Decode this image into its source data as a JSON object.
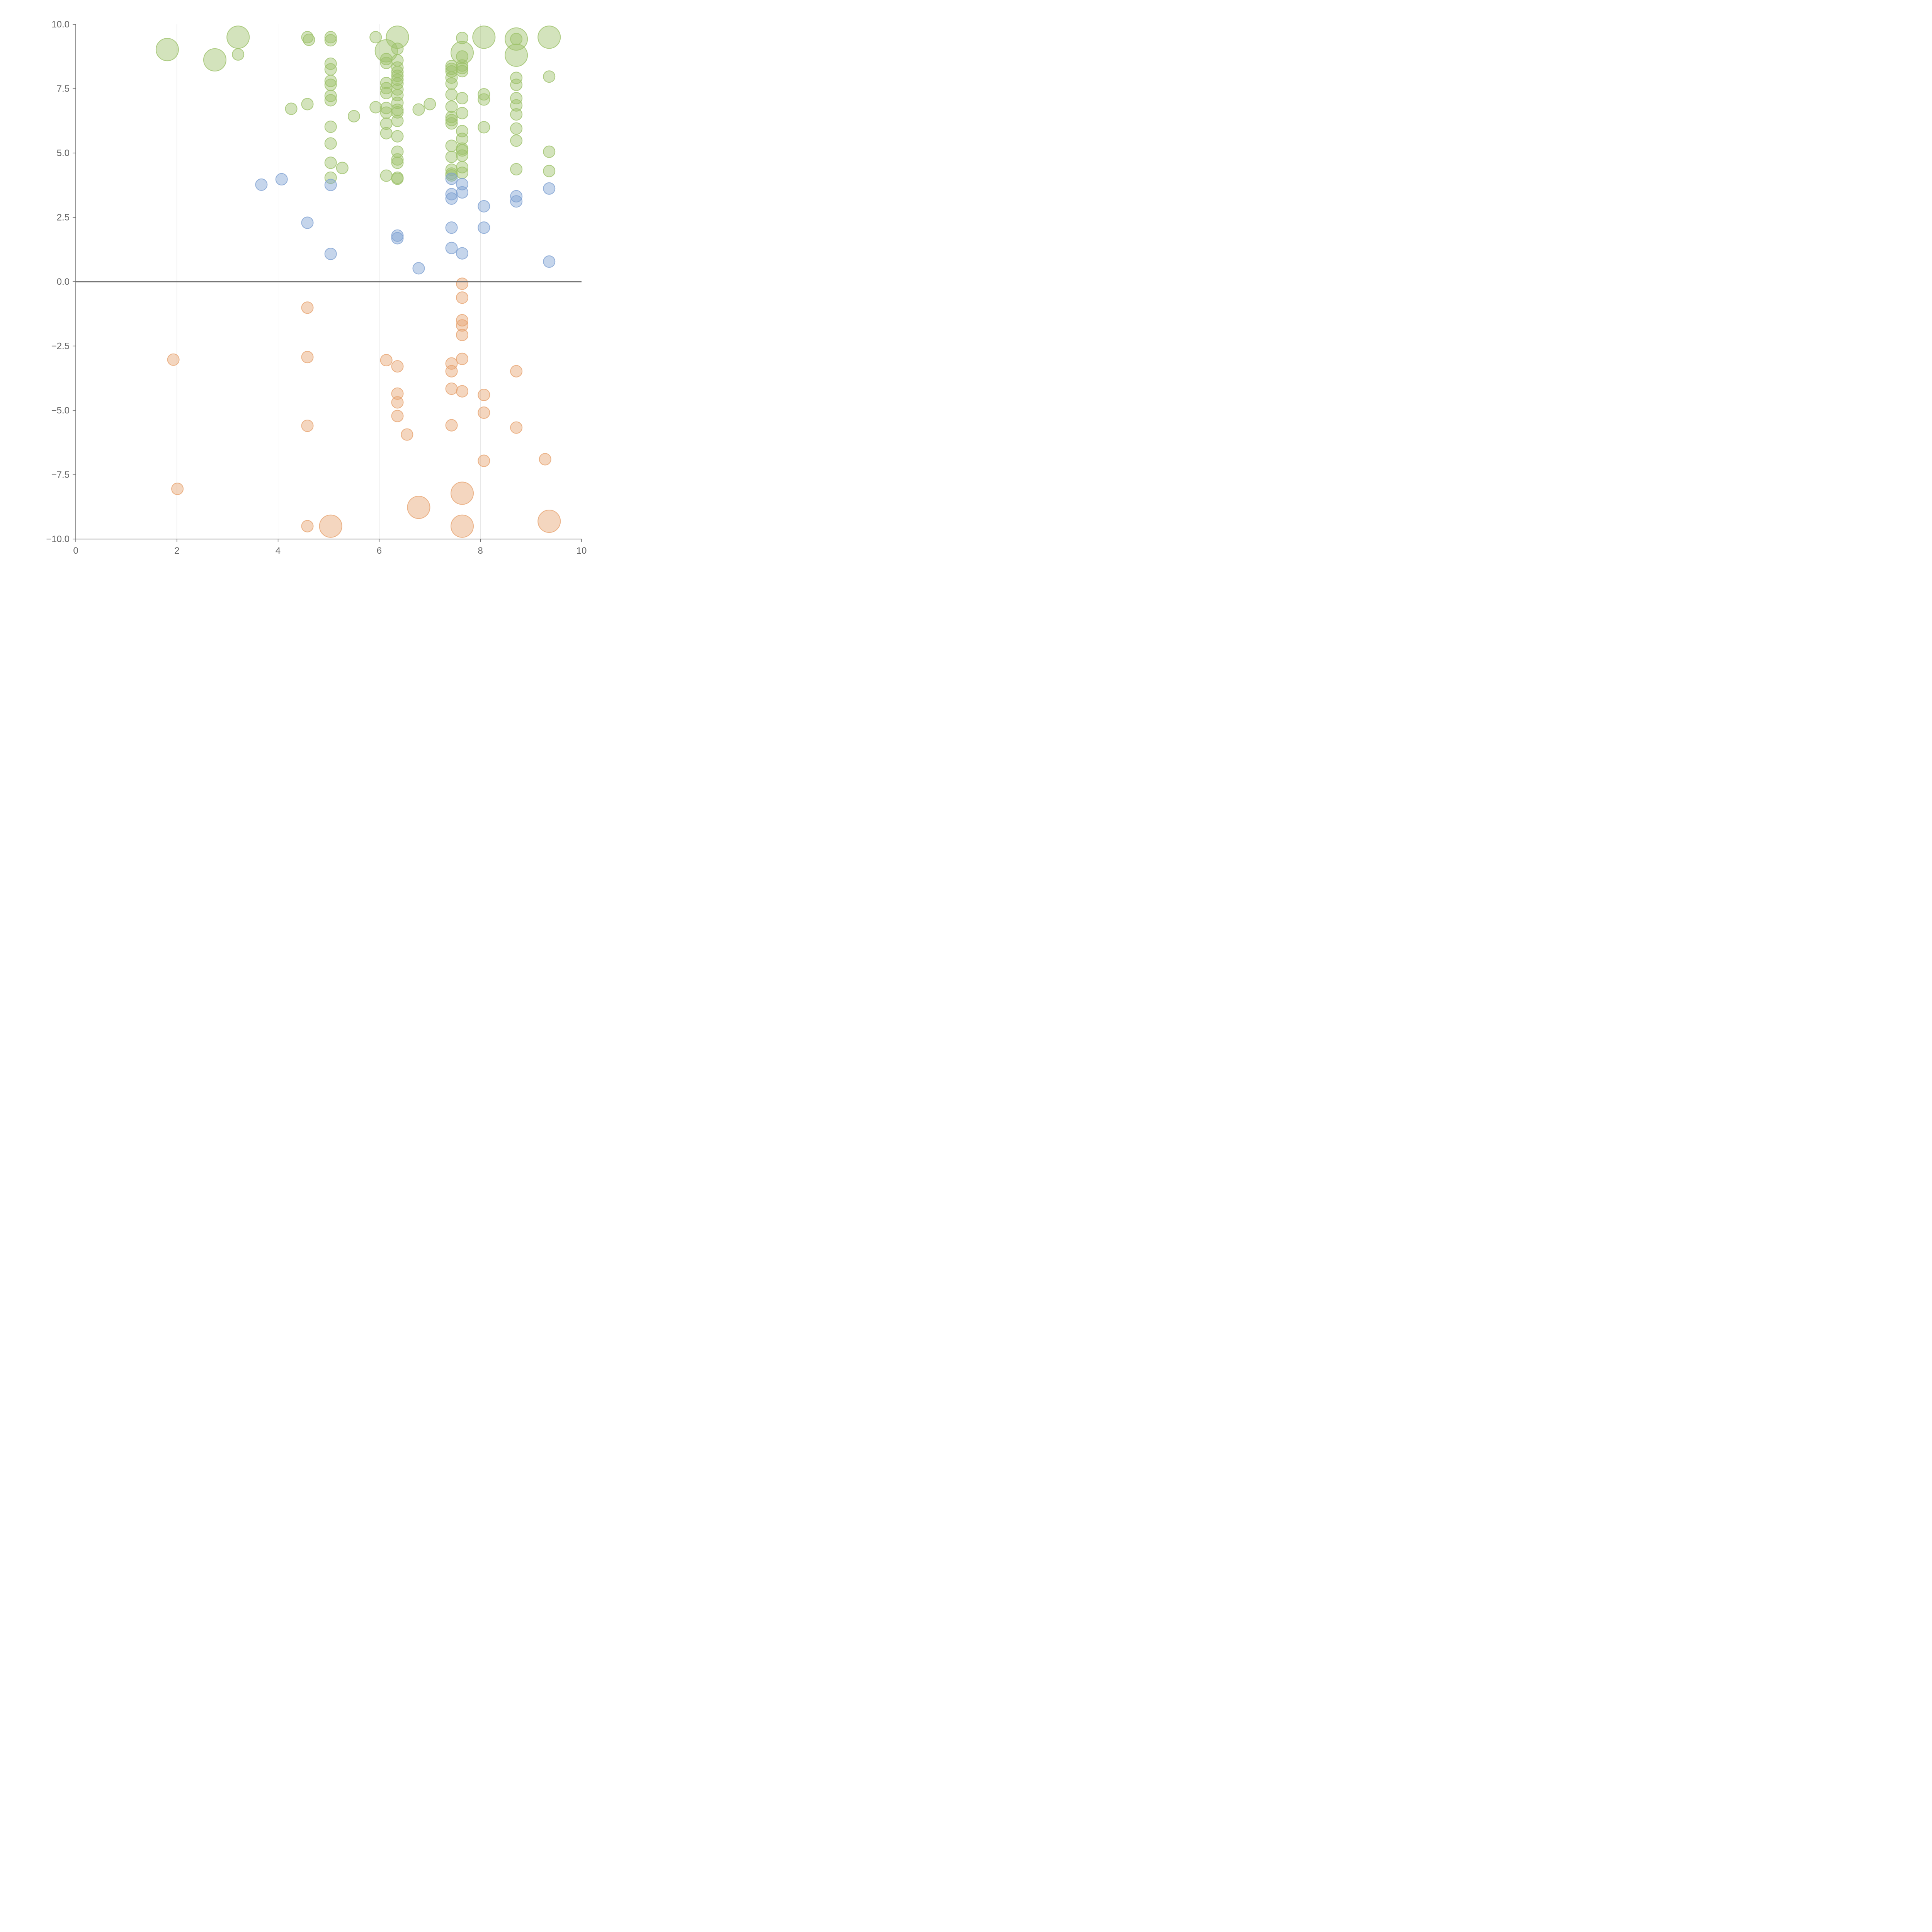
{
  "chart_data": {
    "type": "scatter",
    "title": "",
    "xlabel": "",
    "ylabel": "",
    "xlim": [
      0,
      10
    ],
    "ylim": [
      -10,
      10
    ],
    "xticks": [
      "0",
      "2",
      "4",
      "6",
      "8",
      "10"
    ],
    "yticks": [
      "10.0",
      "7.5",
      "5.0",
      "2.5",
      "0.0",
      "−2.5",
      "−5.0",
      "−7.5",
      "−10.0"
    ],
    "grid": "vertical",
    "zero_line": true,
    "colors": {
      "green": "#9dc26a",
      "blue": "#7fa1d2",
      "orange": "#e7a471",
      "axis": "#666666",
      "grid": "#dddddd"
    },
    "series": [
      {
        "color": "green",
        "points": [
          [
            1.81,
            9.02,
            2
          ],
          [
            2.75,
            8.62,
            2
          ],
          [
            3.21,
            9.5,
            2
          ],
          [
            3.21,
            8.83,
            1
          ],
          [
            4.26,
            6.72,
            1
          ],
          [
            4.58,
            9.5,
            1
          ],
          [
            4.61,
            9.4,
            1
          ],
          [
            4.58,
            6.9,
            1
          ],
          [
            5.04,
            9.5,
            1
          ],
          [
            5.04,
            9.38,
            1
          ],
          [
            5.04,
            8.47,
            1
          ],
          [
            5.04,
            8.25,
            1
          ],
          [
            5.04,
            7.8,
            1
          ],
          [
            5.04,
            7.65,
            1
          ],
          [
            5.04,
            7.22,
            1
          ],
          [
            5.04,
            7.05,
            1
          ],
          [
            5.04,
            6.02,
            1
          ],
          [
            5.04,
            5.37,
            1
          ],
          [
            5.04,
            4.62,
            1
          ],
          [
            5.04,
            4.04,
            1
          ],
          [
            5.27,
            4.42,
            1
          ],
          [
            5.5,
            6.43,
            1
          ],
          [
            5.93,
            6.78,
            1
          ],
          [
            5.93,
            9.5,
            1
          ],
          [
            6.14,
            8.97,
            2
          ],
          [
            6.14,
            8.65,
            1
          ],
          [
            6.14,
            8.5,
            1
          ],
          [
            6.14,
            7.72,
            1
          ],
          [
            6.14,
            7.52,
            1
          ],
          [
            6.14,
            7.33,
            1
          ],
          [
            6.14,
            6.75,
            1
          ],
          [
            6.14,
            6.57,
            1
          ],
          [
            6.14,
            6.14,
            1
          ],
          [
            6.14,
            5.77,
            1
          ],
          [
            6.14,
            4.12,
            1
          ],
          [
            6.36,
            9.5,
            2
          ],
          [
            6.36,
            9.05,
            1
          ],
          [
            6.36,
            8.6,
            1
          ],
          [
            6.36,
            8.32,
            1
          ],
          [
            6.36,
            8.15,
            1
          ],
          [
            6.36,
            8.0,
            1
          ],
          [
            6.36,
            7.85,
            1
          ],
          [
            6.36,
            7.7,
            1
          ],
          [
            6.36,
            7.47,
            1
          ],
          [
            6.36,
            7.25,
            1
          ],
          [
            6.36,
            6.95,
            1
          ],
          [
            6.36,
            6.68,
            1
          ],
          [
            6.36,
            6.58,
            1
          ],
          [
            6.36,
            6.25,
            1
          ],
          [
            6.36,
            5.65,
            1
          ],
          [
            6.36,
            5.05,
            1
          ],
          [
            6.36,
            4.75,
            1
          ],
          [
            6.36,
            4.62,
            1
          ],
          [
            6.36,
            4.04,
            1
          ],
          [
            6.36,
            4.0,
            1
          ],
          [
            6.78,
            6.69,
            1
          ],
          [
            7.0,
            6.9,
            1
          ],
          [
            7.43,
            8.38,
            1
          ],
          [
            7.43,
            8.27,
            1
          ],
          [
            7.43,
            8.17,
            1
          ],
          [
            7.43,
            7.93,
            1
          ],
          [
            7.43,
            7.7,
            1
          ],
          [
            7.43,
            7.27,
            1
          ],
          [
            7.43,
            6.8,
            1
          ],
          [
            7.43,
            6.4,
            1
          ],
          [
            7.43,
            6.28,
            1
          ],
          [
            7.43,
            6.15,
            1
          ],
          [
            7.43,
            5.28,
            1
          ],
          [
            7.43,
            4.85,
            1
          ],
          [
            7.43,
            4.35,
            1
          ],
          [
            7.43,
            4.2,
            1
          ],
          [
            7.43,
            4.13,
            1
          ],
          [
            7.64,
            8.9,
            2
          ],
          [
            7.64,
            9.47,
            1
          ],
          [
            7.64,
            8.75,
            1
          ],
          [
            7.64,
            8.4,
            1
          ],
          [
            7.64,
            8.3,
            1
          ],
          [
            7.64,
            8.18,
            1
          ],
          [
            7.64,
            7.13,
            1
          ],
          [
            7.64,
            6.55,
            1
          ],
          [
            7.64,
            5.85,
            1
          ],
          [
            7.64,
            5.55,
            1
          ],
          [
            7.64,
            5.17,
            1
          ],
          [
            7.64,
            5.1,
            1
          ],
          [
            7.64,
            4.9,
            1
          ],
          [
            7.64,
            4.45,
            1
          ],
          [
            7.64,
            4.23,
            1
          ],
          [
            8.07,
            9.5,
            2
          ],
          [
            8.07,
            7.28,
            1
          ],
          [
            8.07,
            7.08,
            1
          ],
          [
            8.07,
            6.0,
            1
          ],
          [
            8.71,
            9.43,
            2
          ],
          [
            8.71,
            8.8,
            2
          ],
          [
            8.71,
            9.43,
            1
          ],
          [
            8.71,
            7.92,
            1
          ],
          [
            8.71,
            7.65,
            1
          ],
          [
            8.71,
            7.13,
            1
          ],
          [
            8.71,
            6.85,
            1
          ],
          [
            8.71,
            6.5,
            1
          ],
          [
            8.71,
            5.95,
            1
          ],
          [
            8.71,
            5.48,
            1
          ],
          [
            8.71,
            4.37,
            1
          ],
          [
            9.36,
            9.5,
            2
          ],
          [
            9.36,
            7.97,
            1
          ],
          [
            9.36,
            5.05,
            1
          ],
          [
            9.36,
            4.3,
            1
          ]
        ]
      },
      {
        "color": "blue",
        "points": [
          [
            3.67,
            3.77,
            1
          ],
          [
            4.07,
            3.98,
            1
          ],
          [
            4.58,
            2.29,
            1
          ],
          [
            5.04,
            3.76,
            1
          ],
          [
            5.04,
            1.08,
            1
          ],
          [
            6.36,
            1.79,
            1
          ],
          [
            6.36,
            1.69,
            1
          ],
          [
            6.78,
            0.52,
            1
          ],
          [
            7.43,
            4.0,
            1
          ],
          [
            7.43,
            3.4,
            1
          ],
          [
            7.43,
            3.23,
            1
          ],
          [
            7.43,
            2.1,
            1
          ],
          [
            7.43,
            1.31,
            1
          ],
          [
            7.64,
            3.79,
            1
          ],
          [
            7.64,
            3.47,
            1
          ],
          [
            7.64,
            1.1,
            1
          ],
          [
            8.07,
            2.93,
            1
          ],
          [
            8.07,
            2.1,
            1
          ],
          [
            8.71,
            3.32,
            1
          ],
          [
            8.71,
            3.12,
            1
          ],
          [
            9.36,
            3.62,
            1
          ],
          [
            9.36,
            0.78,
            1
          ]
        ]
      },
      {
        "color": "orange",
        "points": [
          [
            1.93,
            -3.03,
            1
          ],
          [
            2.01,
            -8.05,
            1
          ],
          [
            4.58,
            -1.01,
            1
          ],
          [
            4.58,
            -2.93,
            1
          ],
          [
            4.58,
            -5.6,
            1
          ],
          [
            4.58,
            -9.5,
            1
          ],
          [
            5.04,
            -9.5,
            2
          ],
          [
            6.14,
            -3.05,
            1
          ],
          [
            6.36,
            -3.29,
            1
          ],
          [
            6.36,
            -4.35,
            1
          ],
          [
            6.36,
            -4.69,
            1
          ],
          [
            6.36,
            -5.22,
            1
          ],
          [
            6.55,
            -5.94,
            1
          ],
          [
            6.78,
            -8.77,
            2
          ],
          [
            7.43,
            -3.18,
            1
          ],
          [
            7.43,
            -3.48,
            1
          ],
          [
            7.43,
            -4.16,
            1
          ],
          [
            7.43,
            -5.58,
            1
          ],
          [
            7.64,
            -0.08,
            1
          ],
          [
            7.64,
            -0.62,
            1
          ],
          [
            7.64,
            -1.5,
            1
          ],
          [
            7.64,
            -1.7,
            1
          ],
          [
            7.64,
            -2.07,
            1
          ],
          [
            7.64,
            -3.0,
            1
          ],
          [
            7.64,
            -4.26,
            1
          ],
          [
            7.64,
            -8.22,
            2
          ],
          [
            7.64,
            -9.5,
            2
          ],
          [
            8.07,
            -4.4,
            1
          ],
          [
            8.07,
            -5.09,
            1
          ],
          [
            8.07,
            -6.96,
            1
          ],
          [
            8.71,
            -3.48,
            1
          ],
          [
            8.71,
            -5.67,
            1
          ],
          [
            9.28,
            -6.9,
            1
          ],
          [
            9.36,
            -9.31,
            2
          ]
        ]
      }
    ]
  }
}
